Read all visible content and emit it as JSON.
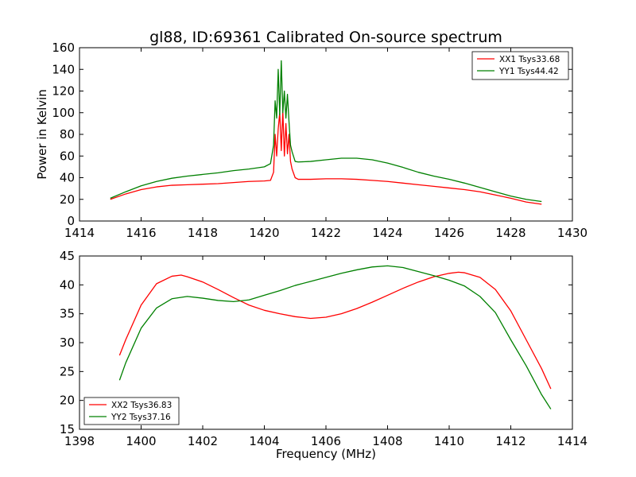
{
  "chart_data": [
    {
      "type": "line",
      "title": "gl88, ID:69361 Calibrated On-source spectrum",
      "xlabel": "",
      "ylabel": "Power in Kelvin",
      "xlim": [
        1414,
        1430
      ],
      "ylim": [
        0,
        160
      ],
      "xticks": [
        1414,
        1416,
        1418,
        1420,
        1422,
        1424,
        1426,
        1428,
        1430
      ],
      "yticks": [
        0,
        20,
        40,
        60,
        80,
        100,
        120,
        140,
        160
      ],
      "grid": false,
      "legend_position": "top-right",
      "series": [
        {
          "name": "XX1 Tsys33.68",
          "color": "#ff0000",
          "x": [
            1415.0,
            1415.5,
            1416.0,
            1416.5,
            1417.0,
            1417.5,
            1418.0,
            1418.5,
            1419.0,
            1419.5,
            1420.0,
            1420.2,
            1420.3,
            1420.35,
            1420.4,
            1420.45,
            1420.5,
            1420.55,
            1420.6,
            1420.65,
            1420.7,
            1420.75,
            1420.8,
            1420.85,
            1420.9,
            1421.0,
            1421.1,
            1421.5,
            1422.0,
            1422.5,
            1423.0,
            1423.5,
            1424.0,
            1424.5,
            1425.0,
            1425.5,
            1426.0,
            1426.5,
            1427.0,
            1427.5,
            1428.0,
            1428.5,
            1429.0
          ],
          "y": [
            20,
            25,
            29,
            31.5,
            33,
            33.5,
            34,
            34.5,
            35.5,
            36.5,
            37,
            37.5,
            45,
            80,
            60,
            85,
            100,
            65,
            102,
            60,
            90,
            62,
            80,
            55,
            48,
            40,
            38.5,
            38.5,
            39,
            39,
            38.5,
            37.5,
            36.5,
            35,
            33.5,
            32,
            30.5,
            29,
            27,
            24,
            21,
            17.5,
            15.5
          ]
        },
        {
          "name": "YY1 Tsys44.42",
          "color": "#008000",
          "x": [
            1415.0,
            1415.5,
            1416.0,
            1416.5,
            1417.0,
            1417.5,
            1418.0,
            1418.5,
            1419.0,
            1419.5,
            1420.0,
            1420.2,
            1420.3,
            1420.35,
            1420.4,
            1420.45,
            1420.5,
            1420.55,
            1420.6,
            1420.65,
            1420.7,
            1420.75,
            1420.8,
            1420.85,
            1420.9,
            1421.0,
            1421.1,
            1421.5,
            1422.0,
            1422.5,
            1423.0,
            1423.5,
            1424.0,
            1424.5,
            1425.0,
            1425.5,
            1426.0,
            1426.5,
            1427.0,
            1427.5,
            1428.0,
            1428.5,
            1429.0
          ],
          "y": [
            21,
            27,
            32.5,
            36.5,
            39.5,
            41.5,
            43,
            44.5,
            46.5,
            48,
            50,
            53,
            70,
            111,
            95,
            140,
            98,
            148,
            100,
            120,
            95,
            117,
            92,
            70,
            64,
            55,
            54.5,
            55,
            56.5,
            58,
            58,
            56.5,
            53.5,
            49.5,
            45,
            41.5,
            38.5,
            35,
            31,
            27,
            23,
            20,
            18
          ]
        }
      ]
    },
    {
      "type": "line",
      "title": "",
      "xlabel": "Frequency (MHz)",
      "ylabel": "",
      "xlim": [
        1398,
        1414
      ],
      "ylim": [
        15,
        45
      ],
      "xticks": [
        1398,
        1400,
        1402,
        1404,
        1406,
        1408,
        1410,
        1412,
        1414
      ],
      "yticks": [
        15,
        20,
        25,
        30,
        35,
        40,
        45
      ],
      "grid": false,
      "legend_position": "bottom-left",
      "series": [
        {
          "name": "XX2 Tsys36.83",
          "color": "#ff0000",
          "x": [
            1399.3,
            1399.5,
            1400.0,
            1400.5,
            1401.0,
            1401.3,
            1401.5,
            1402.0,
            1402.5,
            1403.0,
            1403.5,
            1404.0,
            1404.5,
            1405.0,
            1405.5,
            1406.0,
            1406.5,
            1407.0,
            1407.5,
            1408.0,
            1408.5,
            1409.0,
            1409.5,
            1410.0,
            1410.3,
            1410.5,
            1411.0,
            1411.5,
            1412.0,
            1412.5,
            1413.0,
            1413.3
          ],
          "y": [
            27.8,
            30.5,
            36.5,
            40.2,
            41.5,
            41.7,
            41.4,
            40.5,
            39.2,
            37.8,
            36.5,
            35.6,
            35.0,
            34.5,
            34.2,
            34.4,
            35.0,
            35.9,
            37.0,
            38.2,
            39.4,
            40.5,
            41.4,
            42.0,
            42.2,
            42.1,
            41.3,
            39.2,
            35.5,
            30.5,
            25.5,
            22.0
          ]
        },
        {
          "name": "YY2 Tsys37.16",
          "color": "#008000",
          "x": [
            1399.3,
            1399.5,
            1400.0,
            1400.5,
            1401.0,
            1401.5,
            1402.0,
            1402.5,
            1403.0,
            1403.5,
            1404.0,
            1404.5,
            1405.0,
            1405.5,
            1406.0,
            1406.5,
            1407.0,
            1407.5,
            1408.0,
            1408.5,
            1409.0,
            1409.5,
            1410.0,
            1410.5,
            1411.0,
            1411.5,
            1412.0,
            1412.5,
            1413.0,
            1413.3
          ],
          "y": [
            23.5,
            26.5,
            32.5,
            36.0,
            37.6,
            38.0,
            37.7,
            37.3,
            37.1,
            37.4,
            38.2,
            39.0,
            39.9,
            40.6,
            41.3,
            42.0,
            42.6,
            43.1,
            43.3,
            43.0,
            42.3,
            41.6,
            40.8,
            39.8,
            38.0,
            35.2,
            30.5,
            26.0,
            21.0,
            18.5
          ]
        }
      ]
    }
  ]
}
